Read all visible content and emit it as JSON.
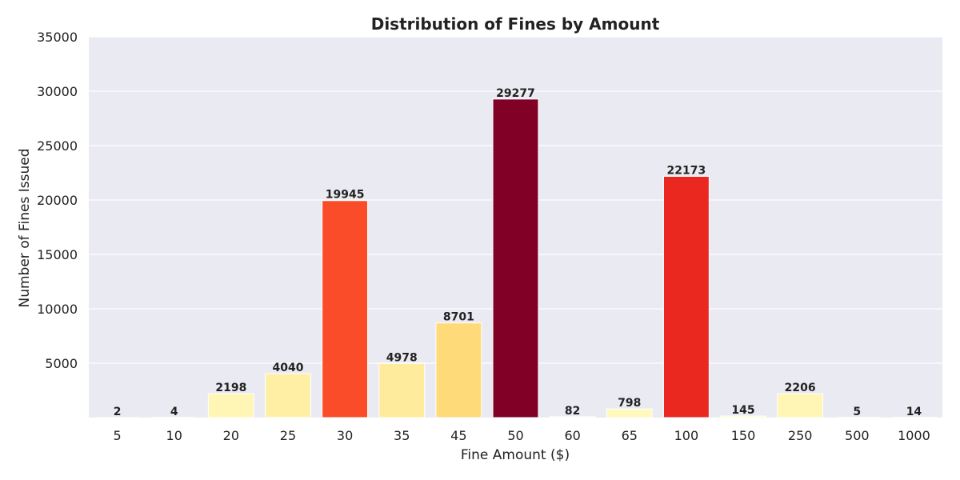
{
  "chart_data": {
    "type": "bar",
    "title": "Distribution of Fines by Amount",
    "xlabel": "Fine Amount ($)",
    "ylabel": "Number of Fines Issued",
    "categories": [
      "5",
      "10",
      "20",
      "25",
      "30",
      "35",
      "45",
      "50",
      "60",
      "65",
      "100",
      "150",
      "250",
      "500",
      "1000"
    ],
    "values": [
      2,
      4,
      2198,
      4040,
      19945,
      4978,
      8701,
      29277,
      82,
      798,
      22173,
      145,
      2206,
      5,
      14
    ],
    "ylim": [
      0,
      35000
    ],
    "yticks": [
      "5000",
      "10000",
      "15000",
      "20000",
      "25000",
      "30000",
      "35000"
    ],
    "grid": true,
    "legend": "none",
    "colors": {
      "background": "#eaeaf2",
      "grid": "#ffffff",
      "colormap": "YlOrRd"
    }
  }
}
